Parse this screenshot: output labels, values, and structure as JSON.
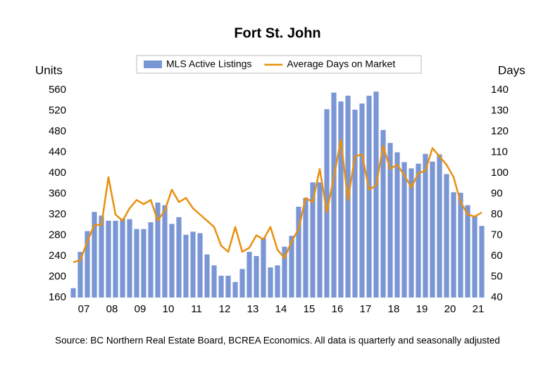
{
  "chart_data": {
    "type": "bar_line",
    "title": "Fort St. John",
    "y_label": "Units",
    "y2_label": "Days",
    "source": "Source: BC Northern Real Estate Board, BCREA Economics. All data is quarterly and seasonally adjusted",
    "categories": [
      null,
      null,
      "07",
      null,
      null,
      null,
      "08",
      null,
      null,
      null,
      "09",
      null,
      null,
      null,
      "10",
      null,
      null,
      null,
      "11",
      null,
      null,
      null,
      "12",
      null,
      null,
      null,
      "13",
      null,
      null,
      null,
      "14",
      null,
      null,
      null,
      "15",
      null,
      null,
      null,
      "16",
      null,
      null,
      null,
      "17",
      null,
      null,
      null,
      "18",
      null,
      null,
      null,
      "19",
      null,
      null,
      null,
      "20",
      null,
      null,
      null,
      "21"
    ],
    "series": [
      {
        "name": "MLS Active Listings",
        "type": "bar",
        "color": "#7b96d4",
        "values": [
          178,
          248,
          288,
          325,
          318,
          308,
          308,
          312,
          311,
          292,
          292,
          305,
          343,
          338,
          302,
          315,
          281,
          287,
          284,
          243,
          222,
          202,
          202,
          190,
          215,
          248,
          240,
          275,
          218,
          222,
          258,
          279,
          335,
          352,
          382,
          382,
          523,
          555,
          538,
          549,
          522,
          534,
          549,
          557,
          483,
          458,
          440,
          421,
          409,
          418,
          437,
          422,
          436,
          398,
          363,
          362,
          338,
          318,
          298
        ]
      },
      {
        "name": "Average Days on Market",
        "type": "line",
        "axis": "y2",
        "color": "#e8900f",
        "values": [
          57,
          58,
          67,
          75,
          75,
          98,
          80,
          77,
          83,
          87,
          85,
          87,
          77,
          82,
          92,
          86,
          88,
          83,
          80,
          77,
          74,
          65,
          62,
          74,
          62,
          64,
          70,
          68,
          74,
          63,
          59,
          67,
          73,
          88,
          86,
          102,
          81,
          98,
          116,
          87,
          108,
          109,
          92,
          94,
          113,
          102,
          104,
          99,
          93,
          100,
          101,
          112,
          108,
          104,
          98,
          86,
          80,
          79,
          81
        ]
      }
    ],
    "ylim": [
      160,
      560
    ],
    "yticks": [
      160,
      200,
      240,
      280,
      320,
      360,
      400,
      440,
      480,
      520,
      560
    ],
    "y2lim": [
      40,
      140
    ],
    "y2ticks": [
      40,
      50,
      60,
      70,
      80,
      90,
      100,
      110,
      120,
      130,
      140
    ],
    "grid": false,
    "legend": "top"
  }
}
